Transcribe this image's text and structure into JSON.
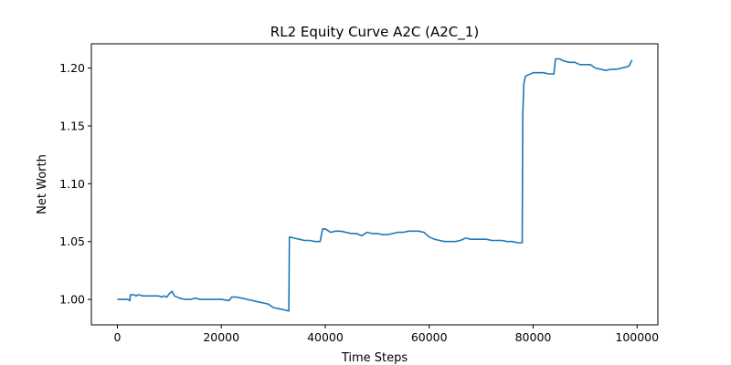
{
  "chart_data": {
    "type": "line",
    "title": "RL2 Equity Curve A2C (A2C_1)",
    "xlabel": "Time Steps",
    "ylabel": "Net Worth",
    "xlim": [
      -5000,
      104000
    ],
    "ylim": [
      0.978,
      1.221
    ],
    "xticks": [
      0,
      20000,
      40000,
      60000,
      80000,
      100000
    ],
    "xtick_labels": [
      "0",
      "20000",
      "40000",
      "60000",
      "80000",
      "100000"
    ],
    "yticks": [
      1.0,
      1.05,
      1.1,
      1.15,
      1.2
    ],
    "ytick_labels": [
      "1.00",
      "1.05",
      "1.10",
      "1.15",
      "1.20"
    ],
    "grid": false,
    "colors": {
      "line": "#1f77b4",
      "axes": "#000000",
      "background": "#ffffff"
    },
    "series": [
      {
        "x": [
          0,
          2000,
          2400,
          2500,
          3200,
          3600,
          4000,
          5000,
          6000,
          7000,
          8000,
          8500,
          9000,
          9500,
          10000,
          10500,
          11000,
          12000,
          13000,
          14000,
          15000,
          16000,
          18000,
          20000,
          21500,
          22000,
          23000,
          24000,
          25000,
          26000,
          27000,
          28000,
          29000,
          30000,
          31000,
          32000,
          33000,
          33100,
          34000,
          35000,
          36000,
          37000,
          38000,
          39000,
          39500,
          40000,
          41000,
          42000,
          43000,
          44000,
          45000,
          46000,
          47000,
          48000,
          49000,
          50000,
          51000,
          52000,
          53000,
          54000,
          55000,
          56000,
          57000,
          58000,
          59000,
          60000,
          61000,
          62000,
          63000,
          64000,
          65000,
          66000,
          67000,
          68000,
          69000,
          70000,
          71000,
          72000,
          73000,
          74000,
          75000,
          76000,
          77000,
          77900,
          78000,
          78200,
          78500,
          79000,
          80000,
          81000,
          82000,
          83000,
          84000,
          84300,
          85000,
          86000,
          87000,
          88000,
          89000,
          90000,
          91000,
          92000,
          93000,
          94000,
          95000,
          96000,
          97000,
          98000,
          98500,
          99000
        ],
        "y": [
          1.0,
          1.0,
          0.999,
          1.004,
          1.004,
          1.003,
          1.004,
          1.003,
          1.003,
          1.003,
          1.003,
          1.002,
          1.003,
          1.002,
          1.005,
          1.007,
          1.003,
          1.001,
          1.0,
          1.0,
          1.001,
          1.0,
          1.0,
          1.0,
          0.999,
          1.002,
          1.002,
          1.001,
          1.0,
          0.999,
          0.998,
          0.997,
          0.996,
          0.993,
          0.992,
          0.991,
          0.99,
          1.054,
          1.053,
          1.052,
          1.051,
          1.051,
          1.05,
          1.05,
          1.061,
          1.061,
          1.058,
          1.059,
          1.059,
          1.058,
          1.057,
          1.057,
          1.055,
          1.058,
          1.057,
          1.057,
          1.056,
          1.056,
          1.057,
          1.058,
          1.058,
          1.059,
          1.059,
          1.059,
          1.058,
          1.054,
          1.052,
          1.051,
          1.05,
          1.05,
          1.05,
          1.051,
          1.053,
          1.052,
          1.052,
          1.052,
          1.052,
          1.051,
          1.051,
          1.051,
          1.05,
          1.05,
          1.049,
          1.049,
          1.158,
          1.186,
          1.193,
          1.194,
          1.196,
          1.196,
          1.196,
          1.195,
          1.195,
          1.208,
          1.208,
          1.206,
          1.205,
          1.205,
          1.203,
          1.203,
          1.203,
          1.2,
          1.199,
          1.198,
          1.199,
          1.199,
          1.2,
          1.201,
          1.202,
          1.207
        ]
      }
    ]
  }
}
